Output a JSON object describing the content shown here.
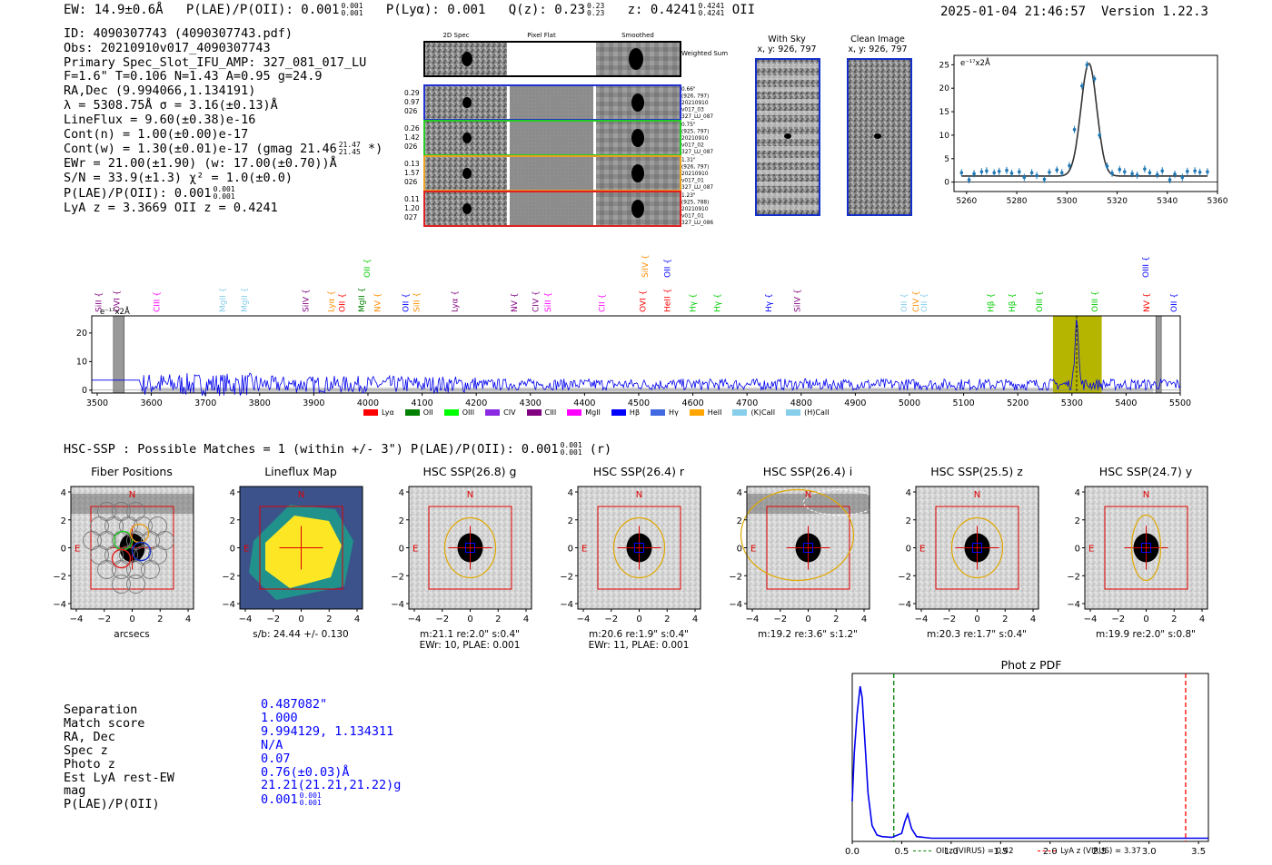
{
  "header": {
    "ew": "EW: 14.9±0.6Å",
    "plae_label": "P(LAE)/P(OII): 0.001",
    "plae_up": "0.001",
    "plae_dn": "0.001",
    "plya": "P(Lyα): 0.001",
    "qz_label": "Q(z): 0.23",
    "qz_up": "0.23",
    "qz_dn": "0.23",
    "z_label": "z: 0.4241",
    "z_up": "0.4241",
    "z_dn": "0.4241",
    "z_line": "OII",
    "timestamp": "2025-01-04 21:46:57",
    "version": "Version 1.22.3"
  },
  "info": {
    "id": "ID: 4090307743 (4090307743.pdf)",
    "obs": "Obs: 20210910v017_4090307743",
    "slot": "Primary Spec_Slot_IFU_AMP: 327_081_017_LU",
    "params": "F=1.6\"  T=0.106  N=1.43  A=0.95  g=24.9",
    "radec": "RA,Dec (9.994066,1.134191)",
    "lambda": "λ = 5308.75Å  σ = 3.16(±0.13)Å",
    "lineflux": "LineFlux = 9.60(±0.38)e-16",
    "contn": "Cont(n) = 1.00(±0.00)e-17",
    "contw": "Cont(w) = 1.30(±0.01)e-17 (gmag 21.46",
    "contw_up": "21.47",
    "contw_dn": "21.45",
    "contw_end": "*)",
    "ewr": "EWr = 21.00(±1.90) (w: 17.00(±0.70))Å",
    "sn": "S/N = 33.9(±1.3)  χ² = 1.0(±0.0)",
    "plae": "P(LAE)/P(OII): 0.001",
    "plae_up": "0.001",
    "plae_dn": "0.001",
    "lya": "LyA z = 3.3669  OII z = 0.4241"
  },
  "cutouts": {
    "col_titles": [
      "2D Spec",
      "Pixel Flat",
      "Smoothed"
    ],
    "weighted_sum": "Weighted Sum",
    "rows": [
      {
        "left": [
          "0.29",
          "0.97",
          "026"
        ],
        "right": [
          "0.66\"",
          "(926, 797)",
          "20210910",
          "v017_03",
          "327_LU_087"
        ],
        "color": "#2030d0"
      },
      {
        "left": [
          "0.26",
          "1.42",
          "026"
        ],
        "right": [
          "0.75\"",
          "(925, 797)",
          "20210910",
          "v017_02",
          "327_LU_087"
        ],
        "color": "#22cc22"
      },
      {
        "left": [
          "0.13",
          "1.57",
          "026"
        ],
        "right": [
          "1.31\"",
          "(926, 797)",
          "20210910",
          "v017_01",
          "327_LU_087"
        ],
        "color": "#e8a020"
      },
      {
        "left": [
          "0.11",
          "1.20",
          "027"
        ],
        "right": [
          "1.23\"",
          "(925, 788)",
          "20210910",
          "v017_01",
          "327_LU_086"
        ],
        "color": "#e02020"
      }
    ]
  },
  "sky": {
    "with_sky_title": "With Sky",
    "with_sky_xy": "x, y: 926, 797",
    "clean_title": "Clean Image",
    "clean_xy": "x, y: 926, 797"
  },
  "chart_data": [
    {
      "type": "line",
      "title": "",
      "ylabel": "e⁻¹⁷x2Å",
      "xlim": [
        5255,
        5360
      ],
      "ylim": [
        -2,
        27
      ],
      "xticks": [
        5260,
        5280,
        5300,
        5320,
        5340,
        5360
      ],
      "yticks": [
        0,
        5,
        10,
        15,
        20,
        25
      ],
      "fit": {
        "center": 5308.75,
        "sigma": 3.16,
        "amp": 24.0,
        "base": 1.3
      },
      "points_x": [
        5258,
        5261,
        5263,
        5266,
        5268,
        5271,
        5273,
        5276,
        5278,
        5281,
        5283,
        5286,
        5288,
        5291,
        5293,
        5296,
        5298,
        5301,
        5303,
        5306,
        5308,
        5311,
        5313,
        5316,
        5318,
        5321,
        5323,
        5326,
        5328,
        5331,
        5333,
        5336,
        5338,
        5341,
        5343,
        5346,
        5348,
        5351,
        5353,
        5356
      ],
      "points_y": [
        2.0,
        0.5,
        1.8,
        2.2,
        2.4,
        2.0,
        2.3,
        2.5,
        1.9,
        2.2,
        1.0,
        2.0,
        1.4,
        0.6,
        2.1,
        2.6,
        2.0,
        3.5,
        11.2,
        20.5,
        25.0,
        22.0,
        10.0,
        3.4,
        1.9,
        2.7,
        2.2,
        1.8,
        1.5,
        2.8,
        2.0,
        1.6,
        2.4,
        0.5,
        1.7,
        1.0,
        2.3,
        2.4,
        2.1,
        2.2
      ]
    },
    {
      "type": "line",
      "ylabel": "e⁻¹⁷x2Å",
      "xlim": [
        3490,
        5500
      ],
      "ylim": [
        -1,
        26
      ],
      "xticks": [
        3500,
        3600,
        3700,
        3800,
        3900,
        4000,
        4100,
        4200,
        4300,
        4400,
        4500,
        4600,
        4700,
        4800,
        4900,
        5000,
        5100,
        5200,
        5300,
        5400,
        5500
      ],
      "yticks": [
        0,
        10,
        20
      ],
      "peak_center": 5308.75,
      "peak_height": 24.5,
      "highlight_band": [
        5265,
        5355
      ],
      "gray_bands": [
        [
          3530,
          3550
        ],
        [
          5455,
          5465
        ]
      ],
      "line_labels": [
        {
          "label": "SiII",
          "x": 3503,
          "color": "#800080",
          "level": 0
        },
        {
          "label": "OVI",
          "x": 3536,
          "color": "#800080",
          "level": 0
        },
        {
          "label": "CIII",
          "x": 3610,
          "color": "#ff00ff",
          "level": 0
        },
        {
          "label": "MgII",
          "x": 3732,
          "color": "#87ceeb",
          "level": 0
        },
        {
          "label": "MgII",
          "x": 3772,
          "color": "#87ceeb",
          "level": 0
        },
        {
          "label": "SiIV",
          "x": 3885,
          "color": "#800080",
          "level": 0
        },
        {
          "label": "Lyα",
          "x": 3932,
          "color": "#ff8c00",
          "level": 0
        },
        {
          "label": "OII",
          "x": 3952,
          "color": "#ff0000",
          "level": 0
        },
        {
          "label": "MgII",
          "x": 3988,
          "color": "#008000",
          "level": 0
        },
        {
          "label": "OII",
          "x": 3998,
          "color": "#00cc00",
          "level": 1
        },
        {
          "label": "NV",
          "x": 4018,
          "color": "#ff8c00",
          "level": 0
        },
        {
          "label": "OII",
          "x": 4070,
          "color": "#0000ff",
          "level": 0
        },
        {
          "label": "SiII",
          "x": 4090,
          "color": "#ff8c00",
          "level": 0
        },
        {
          "label": "Lyα",
          "x": 4160,
          "color": "#800080",
          "level": 0
        },
        {
          "label": "NV",
          "x": 4270,
          "color": "#800080",
          "level": 0
        },
        {
          "label": "CIV",
          "x": 4310,
          "color": "#800080",
          "level": 0
        },
        {
          "label": "SiII",
          "x": 4332,
          "color": "#ff00ff",
          "level": 0
        },
        {
          "label": "CII",
          "x": 4432,
          "color": "#ff00ff",
          "level": 0
        },
        {
          "label": "OVI",
          "x": 4508,
          "color": "#ff0000",
          "level": 0
        },
        {
          "label": "SiIV",
          "x": 4512,
          "color": "#ff8c00",
          "level": 1
        },
        {
          "label": "HeII",
          "x": 4553,
          "color": "#ff0000",
          "level": 0
        },
        {
          "label": "OII",
          "x": 4553,
          "color": "#0000ff",
          "level": 1
        },
        {
          "label": "Hγ",
          "x": 4600,
          "color": "#00cc00",
          "level": 0
        },
        {
          "label": "Hγ",
          "x": 4645,
          "color": "#00cc00",
          "level": 0
        },
        {
          "label": "Hγ",
          "x": 4740,
          "color": "#0000ff",
          "level": 0
        },
        {
          "label": "SiIV",
          "x": 4793,
          "color": "#800080",
          "level": 0
        },
        {
          "label": "OII",
          "x": 4990,
          "color": "#87ceeb",
          "level": 0
        },
        {
          "label": "CIV",
          "x": 5012,
          "color": "#ff8c00",
          "level": 0
        },
        {
          "label": "OII",
          "x": 5027,
          "color": "#87ceeb",
          "level": 0
        },
        {
          "label": "Hβ",
          "x": 5150,
          "color": "#00cc00",
          "level": 0
        },
        {
          "label": "Hβ",
          "x": 5190,
          "color": "#00cc00",
          "level": 0
        },
        {
          "label": "OIII",
          "x": 5240,
          "color": "#00cc00",
          "level": 0
        },
        {
          "label": "OIII",
          "x": 5342,
          "color": "#00cc00",
          "level": 0
        },
        {
          "label": "NV",
          "x": 5438,
          "color": "#ff0000",
          "level": 0
        },
        {
          "label": "OII",
          "x": 5488,
          "color": "#0000ff",
          "level": 0
        },
        {
          "label": "OIII",
          "x": 5436,
          "color": "#0000ff",
          "level": 1
        }
      ]
    },
    {
      "type": "line",
      "title": "Phot z PDF",
      "xlim": [
        0.0,
        3.6
      ],
      "ylim": [
        0,
        1.05
      ],
      "xticks": [
        0.0,
        0.5,
        1.0,
        1.5,
        2.0,
        2.5,
        3.0,
        3.5
      ],
      "oii_z": 0.42,
      "lya_z": 3.37,
      "x": [
        0.0,
        0.02,
        0.05,
        0.08,
        0.1,
        0.13,
        0.16,
        0.2,
        0.25,
        0.3,
        0.4,
        0.5,
        0.53,
        0.56,
        0.6,
        0.65,
        0.8,
        1.0,
        1.5,
        2.0,
        2.5,
        3.0,
        3.6
      ],
      "y": [
        0.25,
        0.55,
        0.8,
        0.97,
        0.9,
        0.6,
        0.3,
        0.1,
        0.04,
        0.03,
        0.025,
        0.05,
        0.12,
        0.17,
        0.08,
        0.03,
        0.02,
        0.02,
        0.02,
        0.02,
        0.02,
        0.02,
        0.02
      ]
    }
  ],
  "legend": {
    "items": [
      {
        "label": "Lyα",
        "color": "#ff0000"
      },
      {
        "label": "OII",
        "color": "#008000"
      },
      {
        "label": "OIII",
        "color": "#00ff00"
      },
      {
        "label": "CIV",
        "color": "#8a2be2"
      },
      {
        "label": "CIII",
        "color": "#800080"
      },
      {
        "label": "MgII",
        "color": "#ff00ff"
      },
      {
        "label": "Hβ",
        "color": "#0000ff"
      },
      {
        "label": "Hγ",
        "color": "#4169e1"
      },
      {
        "label": "HeII",
        "color": "#ffa500"
      },
      {
        "label": "(K)CaII",
        "color": "#87ceeb"
      },
      {
        "label": "(H)CaII",
        "color": "#87ceeb"
      }
    ]
  },
  "hsc": {
    "title": "HSC-SSP : Possible Matches = 1 (within +/- 3\")  P(LAE)/P(OII): 0.001",
    "plae_up": "0.001",
    "plae_dn": "0.001",
    "suffix": "(r)",
    "cells": [
      {
        "title": "Fiber Positions",
        "cap1": "arcsecs",
        "cap2": ""
      },
      {
        "title": "Lineflux Map",
        "cap1": "s/b: 24.44 +/- 0.130",
        "cap2": ""
      },
      {
        "title": "HSC SSP(26.8) g",
        "cap1": "m:21.1  re:2.0\"  s:0.4\"",
        "cap2": "EWr: 10, PLAE: 0.001"
      },
      {
        "title": "HSC SSP(26.4) r",
        "cap1": "m:20.6  re:1.9\"  s:0.4\"",
        "cap2": "EWr: 11, PLAE: 0.001"
      },
      {
        "title": "HSC SSP(26.4) i",
        "cap1": "m:19.2  re:3.6\"  s:1.2\"",
        "cap2": ""
      },
      {
        "title": "HSC SSP(25.5) z",
        "cap1": "m:20.3  re:1.7\"  s:0.4\"",
        "cap2": ""
      },
      {
        "title": "HSC SSP(24.7) y",
        "cap1": "m:19.9  re:2.0\"  s:0.8\"",
        "cap2": ""
      }
    ],
    "axis_ticks": [
      "4",
      "2",
      "0",
      "−2",
      "−4"
    ],
    "n_label": "N",
    "e_label": "E"
  },
  "match": {
    "labels": [
      "Separation",
      "Match score",
      "RA, Dec",
      "Spec z",
      "Photo z",
      "Est LyA rest-EW",
      "mag",
      "P(LAE)/P(OII)"
    ],
    "values": [
      "0.487082\"",
      "1.000",
      "9.994129, 1.134311",
      "N/A",
      "0.07",
      "0.76(±0.03)Å",
      "21.21(21.21,21.22)g",
      "0.001"
    ],
    "plae_up": "0.001",
    "plae_dn": "0.001"
  },
  "photz": {
    "legend_oii": "OII z (VIRUS) = 0.42",
    "legend_lya": "LyA z (VIRUS) = 3.37"
  }
}
